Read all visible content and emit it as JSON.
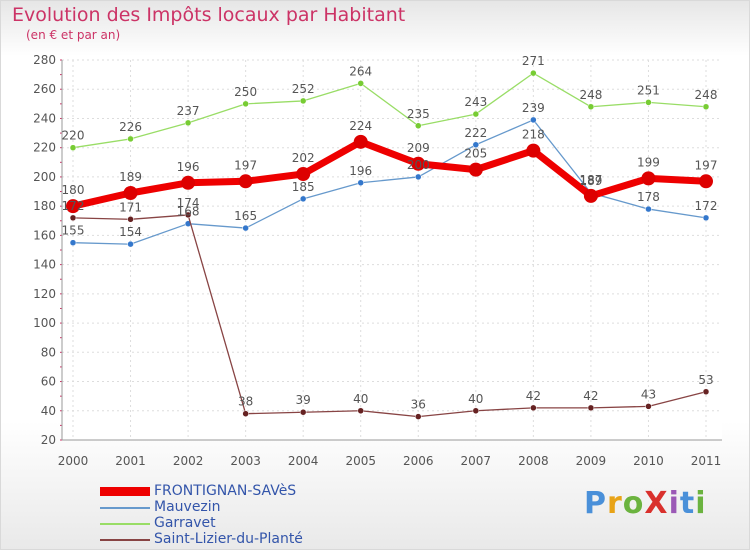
{
  "title": "Evolution des Impôts locaux par Habitant",
  "subtitle": "(en € et par an)",
  "logo": {
    "text": "ProXiti",
    "letter_colors": [
      "#4a90d9",
      "#e8a317",
      "#6bb33f",
      "#d9302c",
      "#9b59b6",
      "#4a90d9",
      "#6bb33f"
    ]
  },
  "chart_data": {
    "type": "line",
    "title": "Evolution des Impôts locaux par Habitant",
    "subtitle": "(en € et par an)",
    "xlabel": "",
    "ylabel": "",
    "ylim": [
      20,
      280
    ],
    "yticks": [
      20,
      40,
      60,
      80,
      100,
      120,
      140,
      160,
      180,
      200,
      220,
      240,
      260,
      280
    ],
    "grid": true,
    "legend_position": "bottom-left",
    "x": [
      2000,
      2001,
      2002,
      2003,
      2004,
      2005,
      2006,
      2007,
      2008,
      2009,
      2010,
      2011
    ],
    "series": [
      {
        "name": "FRONTIGNAN-SAVèS",
        "values": [
          180,
          189,
          196,
          197,
          202,
          224,
          209,
          205,
          218,
          187,
          199,
          197
        ],
        "color": "#ee0000",
        "marker_color": "#dd0000",
        "emphasis": "thick"
      },
      {
        "name": "Mauvezin",
        "values": [
          155,
          154,
          168,
          165,
          185,
          196,
          200,
          222,
          239,
          189,
          178,
          172
        ],
        "color": "#6699cc",
        "marker_color": "#3377cc",
        "emphasis": "normal"
      },
      {
        "name": "Garravet",
        "values": [
          220,
          226,
          237,
          250,
          252,
          264,
          235,
          243,
          271,
          248,
          251,
          248
        ],
        "color": "#99dd66",
        "marker_color": "#77cc33",
        "emphasis": "normal"
      },
      {
        "name": "Saint-Lizier-du-Planté",
        "values": [
          172,
          171,
          174,
          38,
          39,
          40,
          36,
          40,
          42,
          42,
          43,
          53
        ],
        "color": "#884444",
        "marker_color": "#662222",
        "emphasis": "normal"
      }
    ]
  }
}
